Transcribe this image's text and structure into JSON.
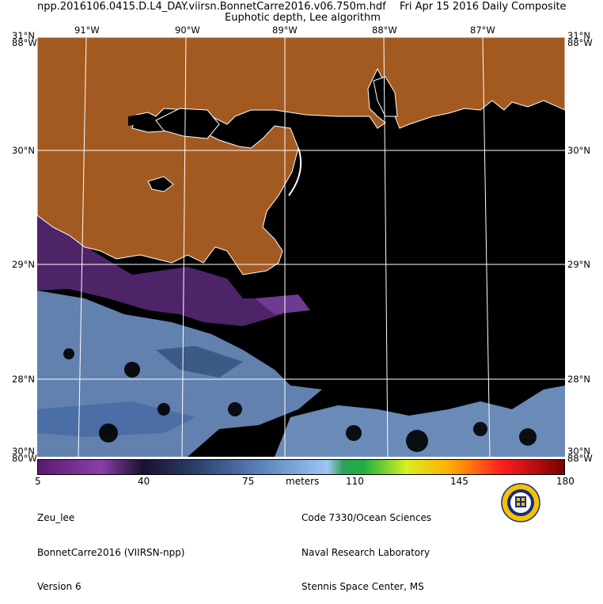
{
  "header": {
    "filename": "npp.2016106.0415.D.L4_DAY.viirsn.BonnetCarre2016.v06.750m.hdf",
    "date_label": "Fri Apr 15 2016 Daily Composite",
    "product": "Euphotic depth, Lee algorithm"
  },
  "map": {
    "lon_labels": [
      "91°W",
      "90°W",
      "89°W",
      "88°W",
      "87°W"
    ],
    "lat_labels": [
      "31°N",
      "30°N",
      "29°N",
      "28°N"
    ],
    "corner_labels": {
      "top_left_lat": "31°N",
      "top_left_lon": "88°W",
      "top_right_lat": "31°N",
      "top_right_lon": "88°W",
      "bottom_left_lat": "30°N",
      "bottom_left_lon": "80°W",
      "bottom_right_lat": "30°N",
      "bottom_right_lon": "88°W"
    },
    "colors": {
      "land": "#a35a21",
      "no_data": "#000000",
      "grid": "#ffffff",
      "coastline": "#ffffff"
    }
  },
  "colorbar": {
    "ticks": [
      "5",
      "40",
      "75",
      "110",
      "145",
      "180"
    ],
    "unit": "meters",
    "range": [
      5,
      180
    ]
  },
  "footer": {
    "left": [
      "Zeu_lee",
      "BonnetCarre2016 (VIIRSN-npp)",
      "Version 6"
    ],
    "right": [
      "Code 7330/Ocean Sciences",
      "Naval Research Laboratory",
      "Stennis Space Center, MS"
    ]
  }
}
